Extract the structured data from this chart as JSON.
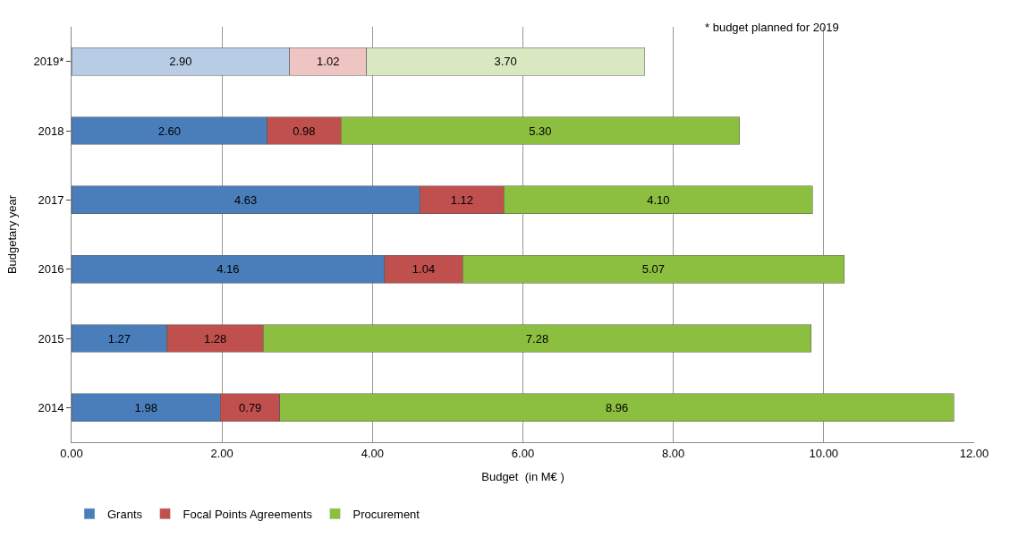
{
  "chart_data": {
    "type": "bar",
    "orientation": "horizontal",
    "stacked": true,
    "xlabel": "Budget  (in M€ )",
    "ylabel": "Budgetary year",
    "categories": [
      "2019*",
      "2018",
      "2017",
      "2016",
      "2015",
      "2014"
    ],
    "series": [
      {
        "name": "Grants",
        "color": "#4a7ebb",
        "colors": [
          "#b9cce6",
          "#4a7ebb",
          "#4a7ebb",
          "#4a7ebb",
          "#4a7ebb",
          "#4a7ebb"
        ],
        "values": [
          2.9,
          2.6,
          4.63,
          4.16,
          1.27,
          1.98
        ],
        "value_labels": [
          "2.90",
          "2.60",
          "4.63",
          "4.16",
          "1.27",
          "1.98"
        ]
      },
      {
        "name": "Focal Points Agreements",
        "color": "#c0504d",
        "colors": [
          "#efc5c4",
          "#c0504d",
          "#c0504d",
          "#c0504d",
          "#c0504d",
          "#c0504d"
        ],
        "values": [
          1.02,
          0.98,
          1.12,
          1.04,
          1.28,
          0.79
        ],
        "value_labels": [
          "1.02",
          "0.98",
          "1.12",
          "1.04",
          "1.28",
          "0.79"
        ]
      },
      {
        "name": "Procurement",
        "color": "#8cbf3f",
        "colors": [
          "#d8e8c0",
          "#8cbf3f",
          "#8cbf3f",
          "#8cbf3f",
          "#8cbf3f",
          "#8cbf3f"
        ],
        "values": [
          3.7,
          5.3,
          4.1,
          5.07,
          7.28,
          8.96
        ],
        "value_labels": [
          "3.70",
          "5.30",
          "4.10",
          "5.07",
          "7.28",
          "8.96"
        ]
      }
    ],
    "xlim": [
      0,
      12
    ],
    "xticks": [
      {
        "value": 0,
        "label": "0.00"
      },
      {
        "value": 2,
        "label": "2.00"
      },
      {
        "value": 4,
        "label": "4.00"
      },
      {
        "value": 6,
        "label": "6.00"
      },
      {
        "value": 8,
        "label": "8.00"
      },
      {
        "value": 10,
        "label": "10.00"
      },
      {
        "value": 12,
        "label": "12.00"
      }
    ],
    "grid": "x",
    "legend": "bottom left",
    "annotations": [
      "* budget planned for 2019"
    ]
  }
}
